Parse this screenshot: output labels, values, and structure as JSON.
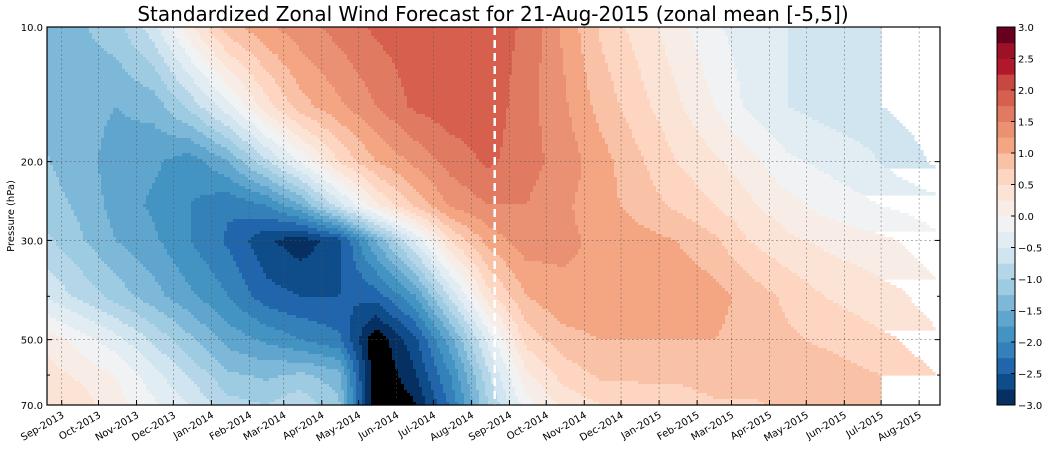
{
  "chart_data": {
    "type": "heatmap",
    "title": "Standardized Zonal Wind Forecast for 21-Aug-2015 (zonal mean [-5,5])",
    "xlabel": "",
    "ylabel": "Pressure (hPa)",
    "xlim": [
      "2013-08-20",
      "2015-08-18"
    ],
    "ylim": [
      70,
      10
    ],
    "yscale": "log",
    "grid": true,
    "yticks": [
      10,
      20,
      30,
      50,
      70
    ],
    "ytick_labels": [
      "10.0",
      "20.0",
      "30.0",
      "50.0",
      "70.0"
    ],
    "yminor_ticks": [
      40,
      60
    ],
    "xticks": [
      "2013-09-01",
      "2013-10-01",
      "2013-11-01",
      "2013-12-01",
      "2014-01-01",
      "2014-02-01",
      "2014-03-01",
      "2014-04-01",
      "2014-05-01",
      "2014-06-01",
      "2014-07-01",
      "2014-08-01",
      "2014-09-01",
      "2014-10-01",
      "2014-11-01",
      "2014-12-01",
      "2015-01-01",
      "2015-02-01",
      "2015-03-01",
      "2015-04-01",
      "2015-05-01",
      "2015-06-01",
      "2015-07-01",
      "2015-08-01"
    ],
    "xtick_labels": [
      "Sep-2013",
      "Oct-2013",
      "Nov-2013",
      "Dec-2013",
      "Jan-2014",
      "Feb-2014",
      "Mar-2014",
      "Apr-2014",
      "May-2014",
      "Jun-2014",
      "Jul-2014",
      "Aug-2014",
      "Sep-2014",
      "Oct-2014",
      "Nov-2014",
      "Dec-2014",
      "Jan-2015",
      "Feb-2015",
      "Mar-2015",
      "Apr-2015",
      "May-2015",
      "Jun-2015",
      "Jul-2015",
      "Aug-2015"
    ],
    "forecast_marker_date": "2014-08-20",
    "colorbar": {
      "min": -3.0,
      "max": 3.0,
      "step": 0.25,
      "tick_values": [
        3.0,
        2.5,
        2.0,
        1.5,
        1.0,
        0.5,
        0.0,
        -0.5,
        -1.0,
        -1.5,
        -2.0,
        -2.5,
        -3.0
      ],
      "tick_labels": [
        "3.0",
        "2.5",
        "2.0",
        "1.5",
        "1.0",
        "0.5",
        "0.0",
        "−0.5",
        "−1.0",
        "−1.5",
        "−2.0",
        "−2.5",
        "−3.0"
      ],
      "colors": [
        "#053061",
        "#0f4d8a",
        "#2166ac",
        "#3480b9",
        "#4393c3",
        "#5fa5cd",
        "#7db8d8",
        "#9dcbe1",
        "#b4d6e8",
        "#d1e5f0",
        "#e2edf3",
        "#f0f2f4",
        "#f8ece7",
        "#fbe3d5",
        "#fdd5c0",
        "#f9c2a7",
        "#f4a582",
        "#eb9173",
        "#e07b62",
        "#d6604d",
        "#c94741",
        "#b2182b",
        "#9c1127",
        "#67001f"
      ],
      "under_color": "#000000"
    },
    "times": [
      "2013-08-15",
      "2013-09-15",
      "2013-10-15",
      "2013-11-15",
      "2013-12-15",
      "2014-01-15",
      "2014-02-15",
      "2014-03-15",
      "2014-04-15",
      "2014-05-15",
      "2014-06-15",
      "2014-07-15",
      "2014-08-15",
      "2014-09-15",
      "2014-10-15",
      "2014-11-15",
      "2014-12-15",
      "2015-01-15",
      "2015-02-15",
      "2015-03-15",
      "2015-04-15",
      "2015-05-15",
      "2015-06-15",
      "2015-07-15",
      "2015-08-15"
    ],
    "levels": [
      10,
      15,
      20,
      25,
      30,
      40,
      50,
      60,
      70
    ],
    "values": [
      [
        -1.3,
        -1.3,
        -1.1,
        -0.6,
        0.2,
        0.9,
        1.2,
        1.4,
        1.6,
        1.8,
        1.9,
        2.0,
        1.9,
        1.7,
        1.2,
        0.7,
        0.4,
        0.1,
        -0.2,
        -0.4,
        -0.5,
        -0.6,
        -0.7,
        -0.8,
        -1.0
      ],
      [
        -1.3,
        -1.4,
        -1.5,
        -1.4,
        -0.9,
        -0.3,
        0.4,
        0.9,
        1.2,
        1.5,
        1.8,
        1.9,
        1.9,
        1.6,
        1.3,
        0.9,
        0.6,
        0.3,
        0.0,
        -0.3,
        -0.5,
        -0.6,
        -0.7,
        -0.8,
        -0.9
      ],
      [
        -1.2,
        -1.4,
        -1.6,
        -1.7,
        -1.9,
        -1.5,
        -0.8,
        -0.2,
        0.5,
        1.0,
        1.3,
        1.6,
        1.8,
        1.6,
        1.4,
        1.1,
        0.8,
        0.5,
        0.3,
        0.1,
        -0.2,
        -0.3,
        -0.4,
        -0.6,
        -0.8
      ],
      [
        -1.1,
        -1.3,
        -1.6,
        -1.8,
        -2.0,
        -2.2,
        -2.0,
        -1.5,
        -0.6,
        0.2,
        0.8,
        1.3,
        1.5,
        1.5,
        1.3,
        1.1,
        0.9,
        0.7,
        0.5,
        0.3,
        0.1,
        -0.1,
        -0.2,
        -0.3,
        -0.4
      ],
      [
        -0.9,
        -1.2,
        -1.5,
        -1.7,
        -2.0,
        -2.3,
        -2.7,
        -2.9,
        -2.6,
        -1.5,
        -0.5,
        0.5,
        1.1,
        1.4,
        1.3,
        1.2,
        1.1,
        1.0,
        0.8,
        0.5,
        0.3,
        0.2,
        0.1,
        0.0,
        -0.2
      ],
      [
        -0.5,
        -0.8,
        -1.1,
        -1.4,
        -1.7,
        -2.0,
        -2.4,
        -2.5,
        -2.5,
        -2.4,
        -1.8,
        -0.7,
        0.4,
        1.0,
        1.2,
        1.2,
        1.2,
        1.2,
        1.1,
        0.9,
        0.7,
        0.5,
        0.4,
        0.3,
        0.1
      ],
      [
        0.2,
        -0.1,
        -0.4,
        -0.8,
        -1.2,
        -1.6,
        -1.8,
        -2.0,
        -2.2,
        -3.2,
        -2.6,
        -1.6,
        -0.4,
        0.6,
        0.9,
        1.0,
        1.0,
        1.0,
        1.0,
        0.9,
        0.8,
        0.7,
        0.6,
        0.5,
        0.3
      ],
      [
        0.4,
        0.2,
        0.0,
        -0.4,
        -0.8,
        -1.2,
        -1.3,
        -1.2,
        -1.4,
        -3.3,
        -2.8,
        -2.0,
        -0.8,
        0.2,
        0.6,
        0.8,
        0.8,
        0.8,
        0.9,
        0.9,
        0.9,
        0.9,
        0.8,
        0.7,
        0.5
      ],
      [
        0.5,
        0.4,
        0.1,
        -0.2,
        -0.5,
        -0.9,
        -1.0,
        -0.8,
        -1.2,
        -3.3,
        -3.05,
        -2.2,
        -1.0,
        -0.1,
        0.3,
        0.5,
        0.6,
        0.6,
        0.7,
        0.7,
        0.8,
        0.8,
        0.9,
        0.6,
        0.5
      ]
    ]
  }
}
